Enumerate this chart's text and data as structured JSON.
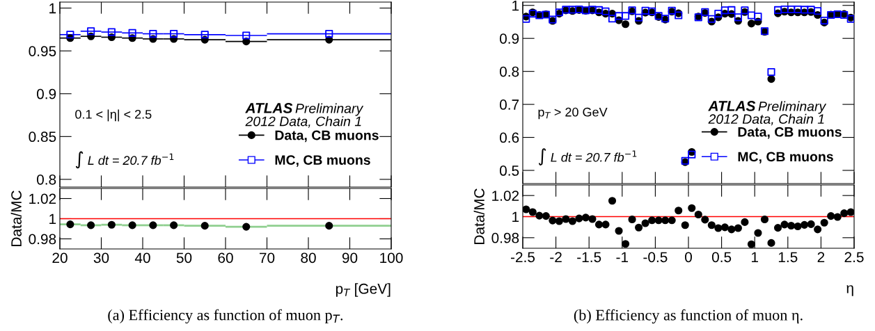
{
  "chart_data": [
    {
      "type": "scatter",
      "x": [
        22.5,
        27.5,
        32.5,
        37.5,
        42.5,
        47.5,
        55,
        65,
        85
      ],
      "xlim": [
        20,
        100
      ],
      "xticks": [
        20,
        30,
        40,
        50,
        60,
        70,
        80,
        90,
        100
      ],
      "ylim": [
        0.791,
        1.007
      ],
      "yticks": [
        0.8,
        0.85,
        0.9,
        0.95,
        1
      ],
      "tick_labels": "y",
      "legend": "bottom right",
      "series": [
        {
          "name": "Data, CB muons",
          "color": "#000000",
          "marker": "circle",
          "values": [
            0.965,
            0.967,
            0.966,
            0.965,
            0.964,
            0.964,
            0.963,
            0.961,
            0.963
          ],
          "xerrors": [
            2.5,
            2.5,
            2.5,
            2.5,
            2.5,
            2.5,
            5,
            5,
            15
          ]
        },
        {
          "name": "MC, CB muons",
          "color": "#0000ff",
          "marker": "square",
          "values": [
            0.969,
            0.973,
            0.972,
            0.971,
            0.97,
            0.97,
            0.969,
            0.968,
            0.97
          ],
          "xerrors": [
            2.5,
            2.5,
            2.5,
            2.5,
            2.5,
            2.5,
            5,
            5,
            15
          ]
        }
      ],
      "annotations": [
        "0.1 < |η| < 2.5",
        "∫ L dt = 20.7 fb$^{−1}$",
        "ATLAS",
        "Preliminary",
        "2012 Data, Chain 1"
      ]
    },
    {
      "type": "scatter",
      "x": [
        22.5,
        27.5,
        32.5,
        37.5,
        42.5,
        47.5,
        55,
        65,
        85
      ],
      "xlim": [
        20,
        100
      ],
      "xticks": [
        20,
        30,
        40,
        50,
        60,
        70,
        80,
        90,
        100
      ],
      "ylim": [
        0.97,
        1.03
      ],
      "yticks": [
        0.98,
        1,
        1.02
      ],
      "xlabel": "p$_{T}$ [GeV]",
      "ylabel": "Data/MC",
      "series": [
        {
          "color": "#000000",
          "marker": "circle",
          "values": [
            0.9944,
            0.9935,
            0.994,
            0.9935,
            0.9935,
            0.9935,
            0.993,
            0.992,
            0.993
          ],
          "xerrors": [
            2.5,
            2.5,
            2.5,
            2.5,
            2.5,
            2.5,
            5,
            5,
            15
          ]
        }
      ],
      "ref_lines": [
        {
          "axis": "y",
          "value": 1,
          "color": "#ff0000"
        }
      ],
      "annotations": [
        "(a) Efficiency as function of muon p$_{T}$."
      ]
    },
    {
      "type": "scatter",
      "x": [
        -2.45,
        -2.35,
        -2.25,
        -2.15,
        -2.05,
        -1.95,
        -1.85,
        -1.75,
        -1.65,
        -1.55,
        -1.45,
        -1.35,
        -1.25,
        -1.15,
        -1.05,
        -0.95,
        -0.85,
        -0.75,
        -0.65,
        -0.55,
        -0.45,
        -0.35,
        -0.25,
        -0.15,
        -0.05,
        0.05,
        0.15,
        0.25,
        0.35,
        0.45,
        0.55,
        0.65,
        0.75,
        0.85,
        0.95,
        1.05,
        1.15,
        1.25,
        1.35,
        1.45,
        1.55,
        1.65,
        1.75,
        1.85,
        1.95,
        2.05,
        2.15,
        2.25,
        2.35,
        2.45
      ],
      "xlim": [
        -2.5,
        2.5
      ],
      "xticks": [
        -2.5,
        -2,
        -1.5,
        -1,
        -0.5,
        0,
        0.5,
        1,
        1.5,
        2,
        2.5
      ],
      "ylim": [
        0.46,
        1.01
      ],
      "yticks": [
        0.5,
        0.6,
        0.7,
        0.8,
        0.9,
        1
      ],
      "tick_labels": "y",
      "legend": "bottom right",
      "series": [
        {
          "name": "Data, CB muons",
          "color": "#000000",
          "marker": "circle",
          "values": [
            0.966,
            0.979,
            0.971,
            0.973,
            0.953,
            0.975,
            0.985,
            0.983,
            0.986,
            0.984,
            0.985,
            0.979,
            0.975,
            0.975,
            0.955,
            0.943,
            0.982,
            0.953,
            0.978,
            0.979,
            0.965,
            0.957,
            0.981,
            0.976,
            0.525,
            0.556,
            0.966,
            0.977,
            0.951,
            0.964,
            0.975,
            0.974,
            0.953,
            0.98,
            0.945,
            0.951,
            0.92,
            0.777,
            0.976,
            0.981,
            0.979,
            0.979,
            0.979,
            0.98,
            0.971,
            0.948,
            0.972,
            0.973,
            0.974,
            0.963
          ]
        },
        {
          "name": "MC, CB muons",
          "color": "#0000ff",
          "marker": "square",
          "values": [
            0.959,
            0.975,
            0.97,
            0.972,
            0.957,
            0.979,
            0.987,
            0.987,
            0.988,
            0.985,
            0.987,
            0.986,
            0.982,
            0.96,
            0.968,
            0.968,
            0.985,
            0.963,
            0.984,
            0.982,
            0.968,
            0.96,
            0.984,
            0.97,
            0.529,
            0.548,
            0.964,
            0.98,
            0.959,
            0.975,
            0.985,
            0.986,
            0.964,
            0.985,
            0.97,
            0.966,
            0.922,
            0.798,
            0.986,
            0.988,
            0.988,
            0.988,
            0.987,
            0.987,
            0.983,
            0.954,
            0.971,
            0.973,
            0.971,
            0.959
          ]
        }
      ],
      "annotations": [
        "p$_{T}$ > 20 GeV",
        "∫ L dt = 20.7 fb$^{−1}$",
        "ATLAS",
        "Preliminary",
        "2012 Data, Chain 1"
      ]
    },
    {
      "type": "scatter",
      "x": [
        -2.45,
        -2.35,
        -2.25,
        -2.15,
        -2.05,
        -1.95,
        -1.85,
        -1.75,
        -1.65,
        -1.55,
        -1.45,
        -1.35,
        -1.25,
        -1.15,
        -1.05,
        -0.95,
        -0.85,
        -0.75,
        -0.65,
        -0.55,
        -0.45,
        -0.35,
        -0.25,
        -0.15,
        -0.05,
        0.05,
        0.15,
        0.25,
        0.35,
        0.45,
        0.55,
        0.65,
        0.75,
        0.85,
        0.95,
        1.05,
        1.15,
        1.25,
        1.35,
        1.45,
        1.55,
        1.65,
        1.75,
        1.85,
        1.95,
        2.05,
        2.15,
        2.25,
        2.35,
        2.45
      ],
      "xlim": [
        -2.5,
        2.5
      ],
      "xticks": [
        -2.5,
        -2,
        -1.5,
        -1,
        -0.5,
        0,
        0.5,
        1,
        1.5,
        2,
        2.5
      ],
      "ylim": [
        0.97,
        1.03
      ],
      "yticks": [
        0.98,
        1,
        1.02
      ],
      "xlabel": "η",
      "ylabel": "Data/MC",
      "series": [
        {
          "color": "#000000",
          "marker": "circle",
          "values": [
            1.0069,
            1.0043,
            1.0009,
            1.0006,
            0.9963,
            0.9957,
            0.9977,
            0.9957,
            0.9983,
            0.9991,
            0.9977,
            0.9925,
            0.9925,
            1.015,
            0.9865,
            0.9741,
            0.9974,
            0.9896,
            0.9937,
            0.9965,
            0.9965,
            0.9965,
            0.9965,
            1.0058,
            0.9919,
            1.0081,
            1.002,
            0.9971,
            0.9919,
            0.9891,
            0.9899,
            0.9879,
            0.9891,
            0.9948,
            0.9738,
            0.9845,
            0.9974,
            0.975,
            0.9894,
            0.9925,
            0.9914,
            0.9908,
            0.9922,
            0.9928,
            0.9879,
            0.9942,
            1.0006,
            0.9997,
            1.0032,
            1.0043
          ]
        }
      ],
      "ref_lines": [
        {
          "axis": "y",
          "value": 1,
          "color": "#ff0000"
        }
      ],
      "annotations": [
        "(b) Efficiency as function of muon η."
      ]
    }
  ]
}
